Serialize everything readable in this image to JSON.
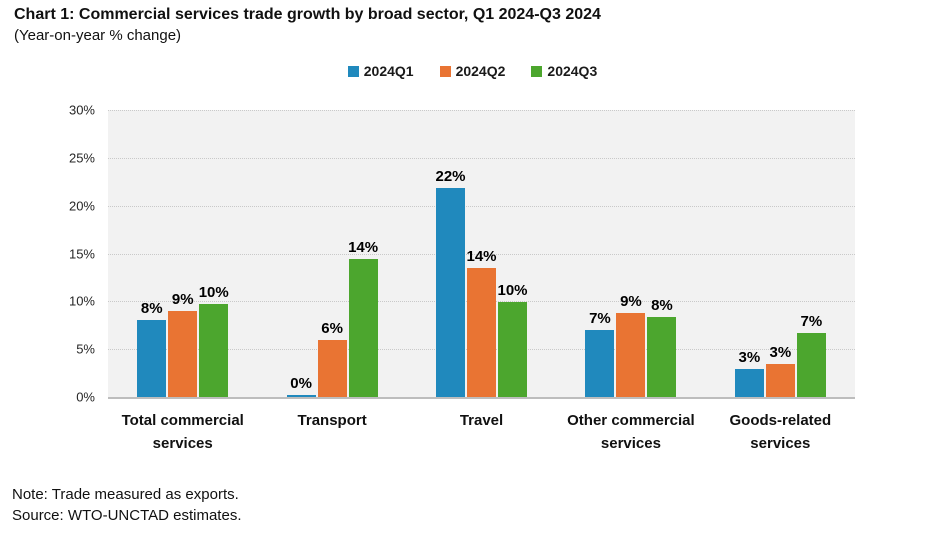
{
  "title": "Chart 1: Commercial services trade growth by broad sector, Q1 2024-Q3 2024",
  "subtitle": "(Year-on-year % change)",
  "note": "Note: Trade measured as exports.",
  "source": "Source: WTO-UNCTAD estimates.",
  "colors": {
    "q1_blue": "#2089BD",
    "q2_orange": "#E97433",
    "q3_green": "#4CA62E",
    "plot_background": "#F2F2F2",
    "gridline": "#C9C9C9",
    "axis_line": "#BDBDBD"
  },
  "chart_data": {
    "type": "bar",
    "title": "Chart 1: Commercial services trade growth by broad sector, Q1 2024-Q3 2024",
    "subtitle": "(Year-on-year % change)",
    "categories": [
      "Total commercial services",
      "Transport",
      "Travel",
      "Other commercial services",
      "Goods-related services"
    ],
    "category_lines": [
      [
        "Total commercial",
        "services"
      ],
      [
        "Transport"
      ],
      [
        "Travel"
      ],
      [
        "Other commercial",
        "services"
      ],
      [
        "Goods-related",
        "services"
      ]
    ],
    "series": [
      {
        "name": "2024Q1",
        "color": "#2089BD",
        "values": [
          8.0,
          0.2,
          21.9,
          7.0,
          2.9
        ],
        "labels": [
          "8%",
          "0%",
          "22%",
          "7%",
          "3%"
        ]
      },
      {
        "name": "2024Q2",
        "color": "#E97433",
        "values": [
          9.0,
          6.0,
          13.5,
          8.8,
          3.4
        ],
        "labels": [
          "9%",
          "6%",
          "14%",
          "9%",
          "3%"
        ]
      },
      {
        "name": "2024Q3",
        "color": "#4CA62E",
        "values": [
          9.7,
          14.4,
          9.9,
          8.4,
          6.7
        ],
        "labels": [
          "10%",
          "14%",
          "10%",
          "8%",
          "7%"
        ]
      }
    ],
    "xlabel": "",
    "ylabel": "",
    "ylim": [
      0,
      30
    ],
    "yticks": [
      0,
      5,
      10,
      15,
      20,
      25,
      30
    ],
    "ytick_labels": [
      "0%",
      "5%",
      "10%",
      "15%",
      "20%",
      "25%",
      "30%"
    ],
    "grid": "horizontal-dotted",
    "legend_position": "top-center"
  }
}
